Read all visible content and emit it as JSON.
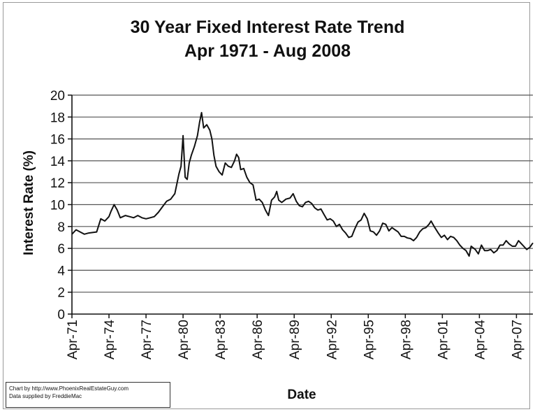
{
  "chart_data": {
    "type": "line",
    "title": "30 Year Fixed Interest Rate Trend",
    "subtitle": "Apr 1971 - Aug 2008",
    "xlabel": "Date",
    "ylabel": "Interest Rate (%)",
    "ylim": [
      0,
      20
    ],
    "yticks": [
      0,
      2,
      4,
      6,
      8,
      10,
      12,
      14,
      16,
      18,
      20
    ],
    "xlim": [
      "1971-04",
      "2008-08"
    ],
    "xticks": [
      "Apr-71",
      "Apr-74",
      "Apr-77",
      "Apr-80",
      "Apr-83",
      "Apr-86",
      "Apr-89",
      "Apr-92",
      "Apr-95",
      "Apr-98",
      "Apr-01",
      "Apr-04",
      "Apr-07"
    ],
    "grid": true,
    "legend": "none",
    "line_color": "#111111",
    "grid_color": "#555555",
    "series": [
      {
        "points": [
          [
            "1971-04",
            7.3
          ],
          [
            "1971-08",
            7.7
          ],
          [
            "1971-12",
            7.5
          ],
          [
            "1972-04",
            7.3
          ],
          [
            "1972-08",
            7.4
          ],
          [
            "1972-12",
            7.45
          ],
          [
            "1973-04",
            7.5
          ],
          [
            "1973-08",
            8.7
          ],
          [
            "1973-12",
            8.5
          ],
          [
            "1974-04",
            8.9
          ],
          [
            "1974-06",
            9.4
          ],
          [
            "1974-09",
            10.0
          ],
          [
            "1974-12",
            9.5
          ],
          [
            "1975-03",
            8.8
          ],
          [
            "1975-08",
            9.0
          ],
          [
            "1975-12",
            8.9
          ],
          [
            "1976-04",
            8.8
          ],
          [
            "1976-08",
            9.0
          ],
          [
            "1976-12",
            8.8
          ],
          [
            "1977-04",
            8.7
          ],
          [
            "1977-08",
            8.8
          ],
          [
            "1977-12",
            8.9
          ],
          [
            "1978-04",
            9.3
          ],
          [
            "1978-08",
            9.8
          ],
          [
            "1978-12",
            10.3
          ],
          [
            "1979-04",
            10.5
          ],
          [
            "1979-08",
            11.0
          ],
          [
            "1979-12",
            12.8
          ],
          [
            "1980-02",
            13.5
          ],
          [
            "1980-04",
            16.3
          ],
          [
            "1980-06",
            12.5
          ],
          [
            "1980-08",
            12.3
          ],
          [
            "1980-10",
            13.8
          ],
          [
            "1980-12",
            14.5
          ],
          [
            "1981-03",
            15.3
          ],
          [
            "1981-06",
            16.3
          ],
          [
            "1981-08",
            17.5
          ],
          [
            "1981-10",
            18.4
          ],
          [
            "1981-12",
            17.0
          ],
          [
            "1982-03",
            17.3
          ],
          [
            "1982-06",
            16.8
          ],
          [
            "1982-08",
            16.0
          ],
          [
            "1982-10",
            14.5
          ],
          [
            "1982-12",
            13.5
          ],
          [
            "1983-03",
            13.0
          ],
          [
            "1983-06",
            12.7
          ],
          [
            "1983-09",
            13.8
          ],
          [
            "1983-12",
            13.5
          ],
          [
            "1984-03",
            13.4
          ],
          [
            "1984-06",
            14.0
          ],
          [
            "1984-08",
            14.6
          ],
          [
            "1984-10",
            14.3
          ],
          [
            "1984-12",
            13.2
          ],
          [
            "1985-03",
            13.3
          ],
          [
            "1985-06",
            12.5
          ],
          [
            "1985-09",
            12.0
          ],
          [
            "1985-12",
            11.8
          ],
          [
            "1986-03",
            10.4
          ],
          [
            "1986-06",
            10.5
          ],
          [
            "1986-09",
            10.2
          ],
          [
            "1986-12",
            9.5
          ],
          [
            "1987-03",
            9.0
          ],
          [
            "1987-06",
            10.4
          ],
          [
            "1987-09",
            10.7
          ],
          [
            "1987-11",
            11.2
          ],
          [
            "1988-01",
            10.4
          ],
          [
            "1988-04",
            10.2
          ],
          [
            "1988-08",
            10.5
          ],
          [
            "1988-12",
            10.6
          ],
          [
            "1989-03",
            11.0
          ],
          [
            "1989-06",
            10.3
          ],
          [
            "1989-09",
            9.9
          ],
          [
            "1989-12",
            9.8
          ],
          [
            "1990-03",
            10.2
          ],
          [
            "1990-06",
            10.3
          ],
          [
            "1990-09",
            10.1
          ],
          [
            "1990-12",
            9.7
          ],
          [
            "1991-03",
            9.5
          ],
          [
            "1991-06",
            9.6
          ],
          [
            "1991-09",
            9.1
          ],
          [
            "1991-12",
            8.6
          ],
          [
            "1992-03",
            8.7
          ],
          [
            "1992-06",
            8.5
          ],
          [
            "1992-09",
            8.0
          ],
          [
            "1992-12",
            8.2
          ],
          [
            "1993-03",
            7.7
          ],
          [
            "1993-06",
            7.4
          ],
          [
            "1993-09",
            7.0
          ],
          [
            "1993-12",
            7.1
          ],
          [
            "1994-03",
            7.8
          ],
          [
            "1994-06",
            8.4
          ],
          [
            "1994-09",
            8.6
          ],
          [
            "1994-12",
            9.2
          ],
          [
            "1995-03",
            8.7
          ],
          [
            "1995-06",
            7.6
          ],
          [
            "1995-09",
            7.5
          ],
          [
            "1995-12",
            7.2
          ],
          [
            "1996-03",
            7.6
          ],
          [
            "1996-06",
            8.3
          ],
          [
            "1996-09",
            8.2
          ],
          [
            "1996-12",
            7.6
          ],
          [
            "1997-03",
            7.9
          ],
          [
            "1997-06",
            7.7
          ],
          [
            "1997-09",
            7.5
          ],
          [
            "1997-12",
            7.1
          ],
          [
            "1998-03",
            7.1
          ],
          [
            "1998-06",
            6.95
          ],
          [
            "1998-09",
            6.9
          ],
          [
            "1998-12",
            6.7
          ],
          [
            "1999-03",
            7.0
          ],
          [
            "1999-06",
            7.5
          ],
          [
            "1999-09",
            7.8
          ],
          [
            "1999-12",
            7.9
          ],
          [
            "2000-03",
            8.2
          ],
          [
            "2000-05",
            8.5
          ],
          [
            "2000-08",
            8.0
          ],
          [
            "2000-12",
            7.4
          ],
          [
            "2001-03",
            7.0
          ],
          [
            "2001-06",
            7.2
          ],
          [
            "2001-09",
            6.8
          ],
          [
            "2001-12",
            7.1
          ],
          [
            "2002-03",
            7.0
          ],
          [
            "2002-06",
            6.7
          ],
          [
            "2002-09",
            6.3
          ],
          [
            "2002-12",
            6.0
          ],
          [
            "2003-03",
            5.8
          ],
          [
            "2003-06",
            5.3
          ],
          [
            "2003-08",
            6.2
          ],
          [
            "2003-12",
            5.9
          ],
          [
            "2004-03",
            5.5
          ],
          [
            "2004-06",
            6.3
          ],
          [
            "2004-09",
            5.8
          ],
          [
            "2004-12",
            5.8
          ],
          [
            "2005-03",
            5.9
          ],
          [
            "2005-06",
            5.6
          ],
          [
            "2005-09",
            5.8
          ],
          [
            "2005-12",
            6.3
          ],
          [
            "2006-03",
            6.3
          ],
          [
            "2006-06",
            6.7
          ],
          [
            "2006-09",
            6.4
          ],
          [
            "2006-12",
            6.2
          ],
          [
            "2007-03",
            6.2
          ],
          [
            "2007-06",
            6.7
          ],
          [
            "2007-09",
            6.4
          ],
          [
            "2007-12",
            6.1
          ],
          [
            "2008-02",
            5.9
          ],
          [
            "2008-05",
            6.1
          ],
          [
            "2008-08",
            6.5
          ]
        ]
      }
    ]
  },
  "credits": {
    "line1": "Chart by http://www.PhoenixRealEstateGuy.com",
    "line2": "Data supplied by FreddieMac"
  }
}
